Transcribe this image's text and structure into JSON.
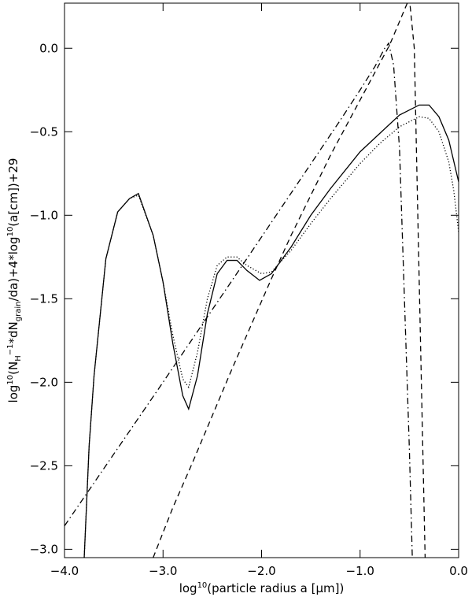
{
  "chart_data": {
    "type": "line",
    "xlabel_parts": [
      "log",
      "10",
      "(particle radius a [μm])"
    ],
    "ylabel_parts": [
      "log",
      "10",
      "(N",
      "H",
      "−1",
      "*dN",
      "grain",
      "/da)+4*log",
      "10",
      "(a[cm])+29"
    ],
    "xlim": [
      -4,
      0
    ],
    "ylim": [
      -3.05,
      0.27
    ],
    "xticks": [
      {
        "value": -4,
        "label": "−4.0"
      },
      {
        "value": -3,
        "label": "−3.0"
      },
      {
        "value": -2,
        "label": "−2.0"
      },
      {
        "value": -1,
        "label": "−1.0"
      },
      {
        "value": 0,
        "label": "0.0"
      }
    ],
    "yticks": [
      {
        "value": -3,
        "label": "−3.0"
      },
      {
        "value": -2.5,
        "label": "−2.5"
      },
      {
        "value": -2,
        "label": "−2.0"
      },
      {
        "value": -1.5,
        "label": "−1.5"
      },
      {
        "value": -1,
        "label": "−1.0"
      },
      {
        "value": -0.5,
        "label": "−0.5"
      },
      {
        "value": 0,
        "label": "0.0"
      }
    ],
    "grid": false,
    "series": [
      {
        "color": "#000000",
        "line_style": "solid",
        "x": [
          -3.8,
          -3.75,
          -3.7,
          -3.58,
          -3.46,
          -3.34,
          -3.25,
          -3.1,
          -3.0,
          -2.9,
          -2.8,
          -2.74,
          -2.65,
          -2.55,
          -2.45,
          -2.35,
          -2.25,
          -2.15,
          -2.02,
          -1.9,
          -1.7,
          -1.5,
          -1.3,
          -1.0,
          -0.8,
          -0.6,
          -0.4,
          -0.3,
          -0.2,
          -0.1,
          0.0
        ],
        "values": [
          -3.05,
          -2.38,
          -1.96,
          -1.26,
          -0.98,
          -0.9,
          -0.87,
          -1.12,
          -1.4,
          -1.77,
          -2.08,
          -2.16,
          -1.96,
          -1.59,
          -1.35,
          -1.27,
          -1.27,
          -1.33,
          -1.39,
          -1.35,
          -1.19,
          -1.0,
          -0.84,
          -0.62,
          -0.51,
          -0.4,
          -0.34,
          -0.34,
          -0.41,
          -0.55,
          -0.8
        ]
      },
      {
        "color": "#000000",
        "line_style": "dotted",
        "x": [
          -3.8,
          -3.75,
          -3.7,
          -3.58,
          -3.46,
          -3.34,
          -3.25,
          -3.1,
          -3.0,
          -2.9,
          -2.8,
          -2.74,
          -2.65,
          -2.55,
          -2.45,
          -2.35,
          -2.25,
          -2.15,
          -2.0,
          -1.9,
          -1.7,
          -1.5,
          -1.3,
          -1.0,
          -0.8,
          -0.6,
          -0.4,
          -0.3,
          -0.2,
          -0.1,
          -0.05,
          0.0
        ],
        "values": [
          -3.05,
          -2.38,
          -1.96,
          -1.26,
          -0.98,
          -0.9,
          -0.88,
          -1.12,
          -1.4,
          -1.72,
          -1.98,
          -2.03,
          -1.82,
          -1.5,
          -1.3,
          -1.25,
          -1.25,
          -1.3,
          -1.35,
          -1.34,
          -1.21,
          -1.05,
          -0.9,
          -0.69,
          -0.57,
          -0.47,
          -0.41,
          -0.42,
          -0.5,
          -0.68,
          -0.85,
          -1.1
        ]
      },
      {
        "color": "#000000",
        "line_style": "dashed",
        "x": [
          -3.1,
          -2.9,
          -2.7,
          -2.5,
          -2.3,
          -2.1,
          -1.9,
          -1.7,
          -1.5,
          -1.3,
          -1.1,
          -0.9,
          -0.7,
          -0.6,
          -0.5,
          -0.45,
          -0.41,
          -0.36,
          -0.34
        ],
        "values": [
          -3.05,
          -2.75,
          -2.48,
          -2.2,
          -1.92,
          -1.65,
          -1.38,
          -1.12,
          -0.88,
          -0.64,
          -0.42,
          -0.2,
          0.02,
          0.16,
          0.3,
          0.0,
          -1.12,
          -2.5,
          -3.05
        ]
      },
      {
        "color": "#000000",
        "line_style": "dashdot",
        "x": [
          -4.0,
          -3.0,
          -2.0,
          -1.2,
          -1.0,
          -0.85,
          -0.75,
          -0.71,
          -0.66,
          -0.6,
          -0.55,
          -0.5,
          -0.47
        ],
        "values": [
          -2.86,
          -2.0,
          -1.13,
          -0.43,
          -0.25,
          -0.11,
          0.0,
          0.03,
          -0.1,
          -0.6,
          -1.5,
          -2.4,
          -3.05
        ]
      }
    ]
  }
}
